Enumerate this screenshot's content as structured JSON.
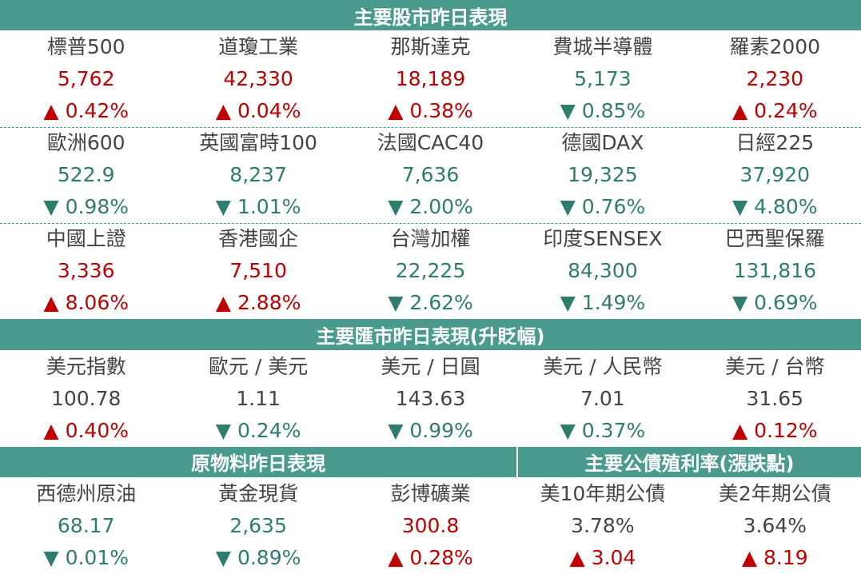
{
  "blocks": [
    {
      "titles": [
        "主要股市昨日表現"
      ],
      "rows": [
        [
          {
            "name": "標普500",
            "value": "5,762",
            "change": "▲ 0.42%",
            "color": "#c00000"
          },
          {
            "name": "道瓊工業",
            "value": "42,330",
            "change": "▲ 0.04%",
            "color": "#c00000"
          },
          {
            "name": "那斯達克",
            "value": "18,189",
            "change": "▲ 0.38%",
            "color": "#c00000"
          },
          {
            "name": "費城半導體",
            "value": "5,173",
            "change": "▼ 0.85%",
            "color": "#2e7d6f"
          },
          {
            "name": "羅素2000",
            "value": "2,230",
            "change": "▲ 0.24%",
            "color": "#c00000"
          }
        ],
        [
          {
            "name": "歐洲600",
            "value": "522.9",
            "change": "▼ 0.98%",
            "color": "#2e7d6f"
          },
          {
            "name": "英國富時100",
            "value": "8,237",
            "change": "▼ 1.01%",
            "color": "#2e7d6f"
          },
          {
            "name": "法國CAC40",
            "value": "7,636",
            "change": "▼ 2.00%",
            "color": "#2e7d6f"
          },
          {
            "name": "德國DAX",
            "value": "19,325",
            "change": "▼ 0.76%",
            "color": "#2e7d6f"
          },
          {
            "name": "日經225",
            "value": "37,920",
            "change": "▼ 4.80%",
            "color": "#2e7d6f"
          }
        ],
        [
          {
            "name": "中國上證",
            "value": "3,336",
            "change": "▲ 8.06%",
            "color": "#c00000"
          },
          {
            "name": "香港國企",
            "value": "7,510",
            "change": "▲ 2.88%",
            "color": "#c00000"
          },
          {
            "name": "台灣加權",
            "value": "22,225",
            "change": "▼ 2.62%",
            "color": "#2e7d6f"
          },
          {
            "name": "印度SENSEX",
            "value": "84,300",
            "change": "▼ 1.49%",
            "color": "#2e7d6f"
          },
          {
            "name": "巴西聖保羅",
            "value": "131,816",
            "change": "▼ 0.69%",
            "color": "#2e7d6f"
          }
        ]
      ]
    },
    {
      "titles": [
        "主要匯市昨日表現(升貶幅)"
      ],
      "rows": [
        [
          {
            "name": "美元指數",
            "value": "100.78",
            "change": "▲ 0.40%",
            "color": "#444444"
          },
          {
            "name": "歐元 / 美元",
            "value": "1.11",
            "change": "▼ 0.24%",
            "color": "#444444"
          },
          {
            "name": "美元 / 日圓",
            "value": "143.63",
            "change": "▼ 0.99%",
            "color": "#444444"
          },
          {
            "name": "美元 / 人民幣",
            "value": "7.01",
            "change": "▼ 0.37%",
            "color": "#444444"
          },
          {
            "name": "美元 / 台幣",
            "value": "31.65",
            "change": "▲ 0.12%",
            "color": "#444444"
          }
        ]
      ]
    },
    {
      "titles": [
        "原物料昨日表現",
        "主要公債殖利率(漲跌點)"
      ],
      "rows": [
        [
          {
            "name": "西德州原油",
            "value": "68.17",
            "change": "▼ 0.01%",
            "color": "#2e7d6f"
          },
          {
            "name": "黃金現貨",
            "value": "2,635",
            "change": "▼ 0.89%",
            "color": "#2e7d6f"
          },
          {
            "name": "彭博礦業",
            "value": "300.8",
            "change": "▲ 0.28%",
            "color": "#c00000"
          },
          {
            "name": "美10年期公債",
            "value": "3.78%",
            "change": "▲ 3.04",
            "color": "#444444"
          },
          {
            "name": "美2年期公債",
            "value": "3.64%",
            "change": "▲ 8.19",
            "color": "#444444"
          }
        ]
      ]
    }
  ]
}
